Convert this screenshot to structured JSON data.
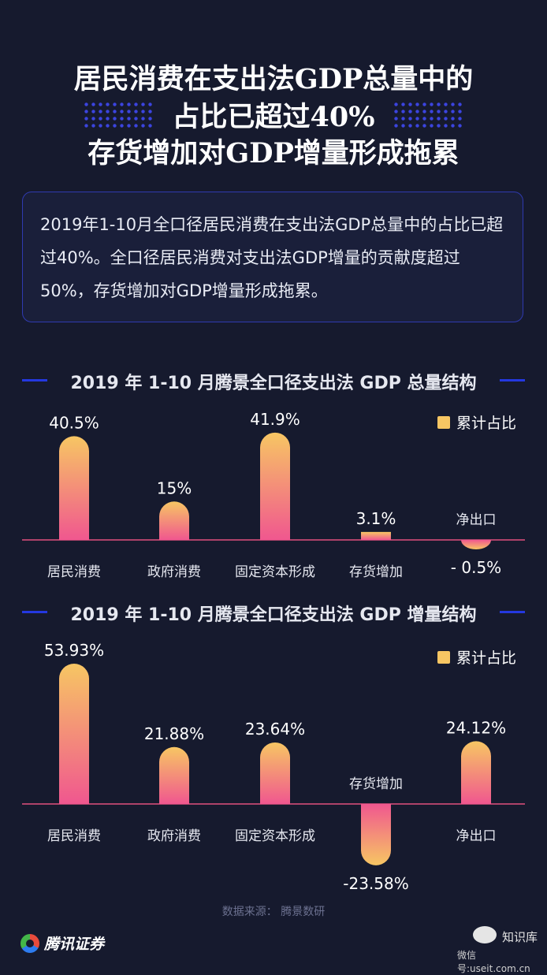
{
  "header": {
    "line1": "居民消费在支出法GDP总量中的",
    "line2": "占比已超过40%",
    "line3": "存货增加对GDP增量形成拖累"
  },
  "summary": {
    "text": "2019年1-10月全口径居民消费在支出法GDP总量中的占比已超过40%。全口径居民消费对支出法GDP增量的贡献度超过50%，存货增加对GDP增量形成拖累。"
  },
  "colors": {
    "bar_top": "#f7c663",
    "bar_bottom": "#f0578f",
    "baseline": "#e0507f",
    "accent_rule": "#2438e0"
  },
  "chart_data": [
    {
      "type": "bar",
      "title": "2019 年 1-10 月腾景全口径支出法 GDP 总量结构",
      "legend": "累计占比",
      "legend_position": "top-right",
      "categories": [
        "居民消费",
        "政府消费",
        "固定资本形成",
        "存货增加",
        "净出口"
      ],
      "values": [
        40.5,
        15,
        41.9,
        3.1,
        -0.5
      ],
      "value_labels": [
        "40.5%",
        "15%",
        "41.9%",
        "3.1%",
        "- 0.5%"
      ],
      "grid": false
    },
    {
      "type": "bar",
      "title": "2019 年 1-10 月腾景全口径支出法 GDP 增量结构",
      "legend": "累计占比",
      "legend_position": "top-right",
      "categories": [
        "居民消费",
        "政府消费",
        "固定资本形成",
        "存货增加",
        "净出口"
      ],
      "values": [
        53.93,
        21.88,
        23.64,
        -23.58,
        24.12
      ],
      "value_labels": [
        "53.93%",
        "21.88%",
        "23.64%",
        "-23.58%",
        "24.12%"
      ],
      "grid": false
    }
  ],
  "footer": {
    "source": "数据来源： 腾景数研",
    "logo": "腾讯证券",
    "watermark_name": "知识库",
    "watermark_id": "微信号:useit.com.cn"
  }
}
